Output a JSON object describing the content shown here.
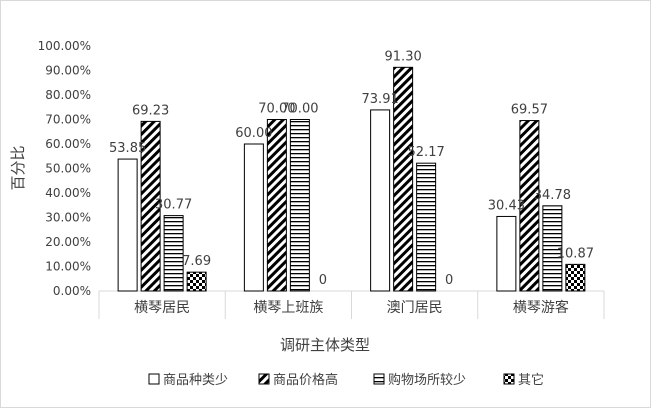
{
  "chart_data": {
    "type": "bar",
    "title": "",
    "xlabel": "调研主体类型",
    "ylabel": "百分比",
    "ylim": [
      0,
      100
    ],
    "yticks": [
      "0.00%",
      "10.00%",
      "20.00%",
      "30.00%",
      "40.00%",
      "50.00%",
      "60.00%",
      "70.00%",
      "80.00%",
      "90.00%",
      "100.00%"
    ],
    "categories": [
      "横琴居民",
      "横琴上班族",
      "澳门居民",
      "横琴游客"
    ],
    "series": [
      {
        "name": "商品种类少",
        "pattern": "solid",
        "values": [
          53.85,
          60.0,
          73.91,
          30.43
        ],
        "labels": [
          "53.85",
          "60.00",
          "73.91",
          "30.43"
        ]
      },
      {
        "name": "商品价格高",
        "pattern": "diagonal",
        "values": [
          69.23,
          70.0,
          91.3,
          69.57
        ],
        "labels": [
          "69.23",
          "70.00",
          "91.30",
          "69.57"
        ]
      },
      {
        "name": "购物场所较少",
        "pattern": "horizontal",
        "values": [
          30.77,
          70.0,
          52.17,
          34.78
        ],
        "labels": [
          "30.77",
          "70.00",
          "52.17",
          "34.78"
        ]
      },
      {
        "name": "其它",
        "pattern": "checker",
        "values": [
          7.69,
          0,
          0,
          10.87
        ],
        "labels": [
          "7.69",
          "0",
          "0",
          "10.87"
        ]
      }
    ],
    "legend_position": "bottom",
    "grid": false,
    "colors": {
      "stroke": "#000000",
      "axis": "#d9d9d9",
      "text": "#404040"
    }
  }
}
